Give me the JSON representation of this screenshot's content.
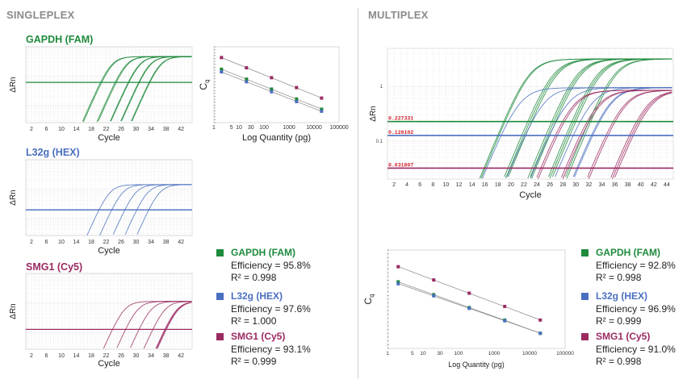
{
  "sections": {
    "singleplex": "SINGLEPLEX",
    "multiplex": "MULTIPLEX"
  },
  "colors": {
    "GAPDH": "#1e8a3c",
    "L32g": "#4a6fbf",
    "SMG1": "#9b2a62",
    "section": "#8a8a8a"
  },
  "chart_data": [
    {
      "id": "sp-gapdh-amp",
      "type": "line",
      "title": "GAPDH (FAM)",
      "xlabel": "Cycle",
      "ylabel": "ΔRn",
      "y_scale": "log",
      "xlim": [
        0.5,
        45
      ],
      "ylim": [
        0.025,
        10
      ],
      "xticks": [
        2,
        6,
        10,
        14,
        18,
        22,
        26,
        30,
        34,
        38,
        42
      ],
      "grid": true,
      "series": [
        {
          "color": "#1e8a3c",
          "plateau": 4.6,
          "threshold": 0.6,
          "ct": [
            20.5,
            20.8,
            24.4,
            24.7,
            27.9,
            28.1,
            30.7,
            30.9,
            33.5,
            33.7
          ]
        }
      ]
    },
    {
      "id": "sp-l32g-amp",
      "type": "line",
      "title": "L32g (HEX)",
      "xlabel": "Cycle",
      "ylabel": "ΔRn",
      "y_scale": "log",
      "xlim": [
        0.5,
        45
      ],
      "ylim": [
        0.025,
        10
      ],
      "xticks": [
        2,
        6,
        10,
        14,
        18,
        22,
        26,
        30,
        34,
        38,
        42
      ],
      "grid": true,
      "series": [
        {
          "color": "#4a6fbf",
          "plateau": 1.4,
          "threshold": 0.19,
          "ct": [
            20.1,
            23.5,
            27.0,
            30.2,
            33.4
          ]
        }
      ]
    },
    {
      "id": "sp-smg1-amp",
      "type": "line",
      "title": "SMG1 (Cy5)",
      "xlabel": "Cycle",
      "ylabel": "ΔRn",
      "y_scale": "log",
      "xlim": [
        0.5,
        45
      ],
      "ylim": [
        0.025,
        10
      ],
      "xticks": [
        2,
        6,
        10,
        14,
        18,
        22,
        26,
        30,
        34,
        38,
        42
      ],
      "grid": true,
      "series": [
        {
          "color": "#9b2a62",
          "plateau": 1.1,
          "threshold": 0.12,
          "ct": [
            23.7,
            27.2,
            30.8,
            34.5,
            37.7,
            37.9,
            38.1
          ]
        }
      ]
    },
    {
      "id": "sp-std",
      "type": "scatter",
      "xlabel": "Log Quantity (pg)",
      "ylabel": "C",
      "ylabel_sub": "q",
      "x_scale": "log",
      "xlim": [
        1,
        100000
      ],
      "ylim": [
        16,
        42
      ],
      "xticks": [
        "1",
        "5",
        "10",
        "30",
        "100",
        "1000",
        "10000",
        "100000"
      ],
      "grid": false,
      "series": [
        {
          "color": "#9b2a62",
          "x": [
            2,
            20,
            200,
            2000,
            20000
          ],
          "y": [
            38.3,
            34.8,
            31.4,
            28.0,
            24.4
          ]
        },
        {
          "color": "#1e8a3c",
          "x": [
            2,
            20,
            200,
            2000,
            20000
          ],
          "y": [
            34.3,
            30.9,
            27.5,
            24.1,
            20.6
          ]
        },
        {
          "color": "#4a6fbf",
          "x": [
            2,
            20,
            200,
            2000,
            20000
          ],
          "y": [
            33.4,
            30.0,
            26.6,
            23.2,
            19.9
          ]
        }
      ]
    },
    {
      "id": "mp-amp",
      "type": "line",
      "xlabel": "Cycle",
      "ylabel": "ΔRn",
      "y_scale": "log",
      "xlim": [
        1,
        45
      ],
      "ylim": [
        0.02,
        5
      ],
      "yticks": [
        "1",
        "0.1"
      ],
      "xticks": [
        2,
        4,
        6,
        8,
        10,
        12,
        14,
        16,
        18,
        20,
        22,
        24,
        26,
        28,
        30,
        32,
        34,
        36,
        38,
        40,
        42,
        44
      ],
      "grid": true,
      "thresholds": [
        {
          "label": "0.227331",
          "value": 0.227331,
          "color": "#1e8a3c"
        },
        {
          "label": "0.126102",
          "value": 0.126102,
          "color": "#4a6fbf"
        },
        {
          "label": "0.031807",
          "value": 0.031807,
          "color": "#9b2a62"
        }
      ],
      "series": [
        {
          "color": "#1e8a3c",
          "plateau": 3.2,
          "threshold": 0.227331,
          "ct": [
            18.9,
            19.1,
            22.6,
            22.9,
            23.2,
            26.3,
            26.6,
            26.9,
            29.4,
            29.7,
            30.0,
            32.0,
            32.3
          ]
        },
        {
          "color": "#4a6fbf",
          "plateau": 0.95,
          "threshold": 0.126102,
          "ct": [
            18.5,
            22.2,
            25.9,
            29.6,
            32.4,
            32.6
          ]
        },
        {
          "color": "#9b2a62",
          "plateau": 0.85,
          "threshold": 0.031807,
          "ct": [
            24.6,
            24.9,
            28.4,
            28.7,
            32.4,
            32.7,
            36.0,
            36.3,
            36.6
          ]
        }
      ]
    },
    {
      "id": "mp-std",
      "type": "scatter",
      "xlabel": "Log Quantity (pg)",
      "ylabel": "C",
      "ylabel_sub": "q",
      "x_scale": "log",
      "xlim": [
        1,
        100000
      ],
      "ylim": [
        16,
        42
      ],
      "xticks": [
        "1",
        "5",
        "10",
        "30",
        "100",
        "1000",
        "10000",
        "100000"
      ],
      "grid": false,
      "series": [
        {
          "color": "#9b2a62",
          "x": [
            2,
            20,
            200,
            2000,
            20000
          ],
          "y": [
            37.6,
            34.1,
            30.6,
            27.1,
            23.5
          ]
        },
        {
          "color": "#1e8a3c",
          "x": [
            2,
            20,
            200,
            2000,
            20000
          ],
          "y": [
            33.6,
            30.2,
            26.8,
            23.5,
            20.0
          ]
        },
        {
          "color": "#4a6fbf",
          "x": [
            2,
            20,
            200,
            2000,
            20000
          ],
          "y": [
            33.1,
            29.9,
            26.6,
            23.3,
            20.0
          ]
        }
      ]
    }
  ],
  "singleplex_legend": [
    {
      "name": "GAPDH (FAM)",
      "efficiency": "Efficiency = 95.8%",
      "r2": "R² = 0.998",
      "color": "#1e8a3c"
    },
    {
      "name": "L32g (HEX)",
      "efficiency": "Efficiency = 97.6%",
      "r2": "R² = 1.000",
      "color": "#4a6fbf"
    },
    {
      "name": "SMG1 (Cy5)",
      "efficiency": "Efficiency = 93.1%",
      "r2": "R² = 0.999",
      "color": "#9b2a62"
    }
  ],
  "multiplex_legend": [
    {
      "name": "GAPDH (FAM)",
      "efficiency": "Efficiency = 92.8%",
      "r2": "R² = 0.998",
      "color": "#1e8a3c"
    },
    {
      "name": "L32g (HEX)",
      "efficiency": "Efficiency = 96.9%",
      "r2": "R² = 0.999",
      "color": "#4a6fbf"
    },
    {
      "name": "SMG1 (Cy5)",
      "efficiency": "Efficiency = 91.0%",
      "r2": "R² = 0.998",
      "color": "#9b2a62"
    }
  ]
}
